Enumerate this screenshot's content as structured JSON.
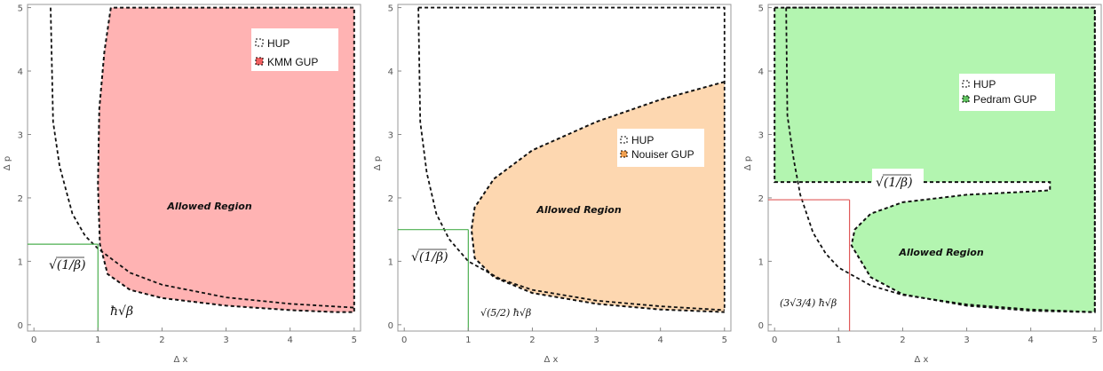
{
  "chart_data": [
    {
      "type": "area",
      "xlabel": "Δ x",
      "ylabel": "Δ p",
      "xlim": [
        -0.1,
        5.1
      ],
      "ylim": [
        -0.1,
        5.05
      ],
      "xticks": [
        "0",
        "1",
        "2",
        "3",
        "4",
        "5"
      ],
      "yticks": [
        "0",
        "1",
        "2",
        "3",
        "4",
        "5"
      ],
      "grid": false,
      "legend_position": "top-right",
      "legend": [
        {
          "label": "HUP",
          "color": "#ffffff"
        },
        {
          "label": "KMM GUP",
          "color": "#f06060"
        }
      ],
      "region_label": "Allowed Region",
      "fill_color": "#ffb3b3",
      "annotations": [
        {
          "text": "√(1/β)"
        },
        {
          "text": "ħ√β"
        }
      ],
      "guide": {
        "x": 1.0,
        "y": 1.27,
        "color": "#4caf50"
      },
      "hup_boundary": {
        "x": [
          0.26,
          0.3,
          0.4,
          0.6,
          0.8,
          1.0,
          1.5,
          2.0,
          3.0,
          4.0,
          5.0
        ],
        "y": [
          5.0,
          3.2,
          2.5,
          1.75,
          1.4,
          1.2,
          0.82,
          0.63,
          0.43,
          0.33,
          0.27
        ]
      },
      "gup_boundary": {
        "x": [
          1.2,
          1.1,
          1.02,
          1.0,
          1.03,
          1.15,
          1.5,
          2.0,
          3.0,
          4.0,
          4.7
        ],
        "y": [
          5.0,
          4.3,
          3.4,
          2.2,
          1.27,
          0.8,
          0.55,
          0.42,
          0.3,
          0.23,
          0.2
        ]
      }
    },
    {
      "type": "area",
      "xlabel": "Δ x",
      "ylabel": "Δ p",
      "xlim": [
        -0.1,
        5.1
      ],
      "ylim": [
        -0.1,
        5.05
      ],
      "xticks": [
        "0",
        "1",
        "2",
        "3",
        "4",
        "5"
      ],
      "yticks": [
        "0",
        "1",
        "2",
        "3",
        "4",
        "5"
      ],
      "grid": false,
      "legend_position": "middle-right",
      "legend": [
        {
          "label": "HUP",
          "color": "#ffffff"
        },
        {
          "label": "Nouiser GUP",
          "color": "#f0a050"
        }
      ],
      "region_label": "Allowed Region",
      "fill_color": "#fdd7b0",
      "annotations": [
        {
          "text": "√(1/β)"
        },
        {
          "text": "√(5/2) ħ√β"
        }
      ],
      "guide": {
        "x": 1.0,
        "y": 1.5,
        "color": "#4caf50"
      },
      "hup_boundary": {
        "x": [
          0.22,
          0.25,
          0.35,
          0.5,
          0.7,
          1.0,
          1.5,
          2.0,
          3.0,
          4.0,
          5.0
        ],
        "y": [
          5.0,
          3.2,
          2.4,
          1.75,
          1.35,
          1.0,
          0.72,
          0.55,
          0.38,
          0.29,
          0.23
        ]
      },
      "gup_boundary": {
        "x": [
          5.0,
          4.0,
          3.0,
          2.0,
          1.4,
          1.1,
          1.05,
          1.1,
          1.4,
          2.0,
          3.0,
          4.0,
          5.0
        ],
        "y": [
          3.83,
          3.55,
          3.2,
          2.75,
          2.3,
          1.85,
          1.5,
          1.05,
          0.75,
          0.5,
          0.33,
          0.24,
          0.2
        ]
      }
    },
    {
      "type": "area",
      "xlabel": "Δ x",
      "ylabel": "Δ p",
      "xlim": [
        -0.1,
        5.1
      ],
      "ylim": [
        -0.1,
        5.05
      ],
      "xticks": [
        "0",
        "1",
        "2",
        "3",
        "4",
        "5"
      ],
      "yticks": [
        "0",
        "1",
        "2",
        "3",
        "4",
        "5"
      ],
      "grid": false,
      "legend_position": "middle-right",
      "legend": [
        {
          "label": "HUP",
          "color": "#ffffff"
        },
        {
          "label": "Pedram GUP",
          "color": "#60c060"
        }
      ],
      "region_label": "Allowed Region",
      "fill_color": "#b3f5b0",
      "annotations": [
        {
          "text": "√(1/β)"
        },
        {
          "text": "(3√3/4) ħ√β"
        }
      ],
      "guide": {
        "x": 1.17,
        "y": 1.97,
        "color": "#e05a5a"
      },
      "hup_boundary": {
        "x": [
          0.18,
          0.2,
          0.3,
          0.4,
          0.6,
          0.8,
          1.0,
          1.5,
          2.0,
          3.0,
          4.0,
          5.0
        ],
        "y": [
          5.0,
          3.3,
          2.6,
          2.05,
          1.45,
          1.12,
          0.9,
          0.62,
          0.47,
          0.32,
          0.24,
          0.2
        ]
      },
      "gup_boundary": {
        "x": [
          0.0,
          5.0,
          5.0,
          4.9,
          4.0,
          3.0,
          2.0,
          1.5,
          1.2,
          1.25,
          1.5,
          2.0,
          3.0,
          4.0,
          4.3,
          4.3,
          0.0
        ],
        "y": [
          5.0,
          5.0,
          0.2,
          0.2,
          0.22,
          0.3,
          0.48,
          0.75,
          1.25,
          1.5,
          1.75,
          1.93,
          2.05,
          2.1,
          2.12,
          2.25,
          2.25
        ]
      }
    }
  ]
}
